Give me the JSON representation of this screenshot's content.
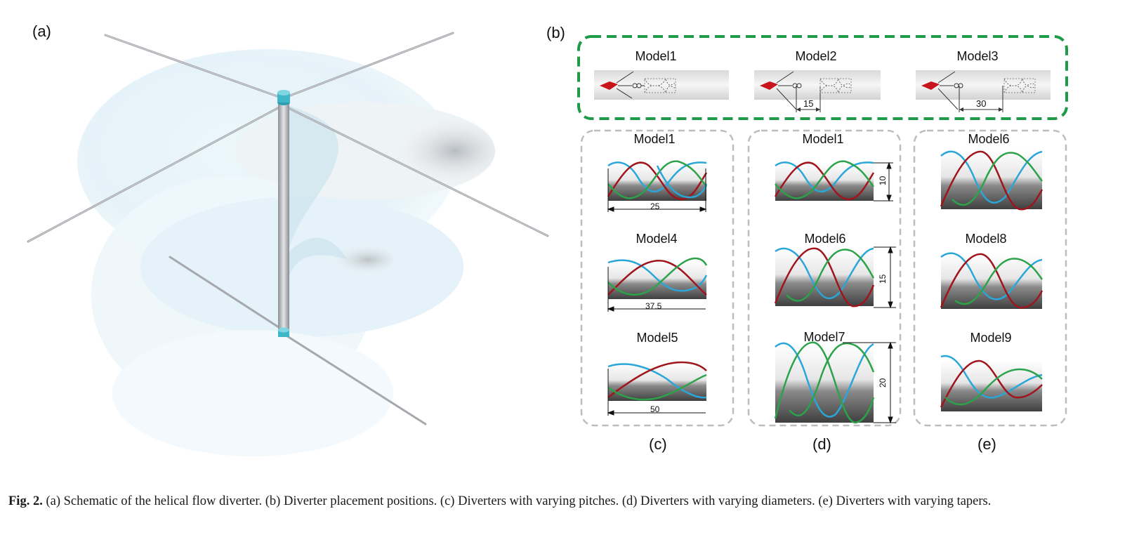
{
  "figure": {
    "panel_labels": {
      "a": "(a)",
      "b": "(b)",
      "c": "(c)",
      "d": "(d)",
      "e": "(e)"
    },
    "placement": {
      "models": [
        "Model1",
        "Model2",
        "Model3"
      ],
      "offsets": [
        "15",
        "30"
      ]
    },
    "pitch_group": {
      "models": [
        "Model1",
        "Model4",
        "Model5"
      ],
      "pitches": [
        "25",
        "37.5",
        "50"
      ]
    },
    "diameter_group": {
      "models": [
        "Model1",
        "Model6",
        "Model7"
      ],
      "diameters": [
        "10",
        "15",
        "20"
      ]
    },
    "taper_group": {
      "models": [
        "Model6",
        "Model8",
        "Model9"
      ]
    },
    "colors": {
      "green_frame": "#1f9a48",
      "gray_frame": "#bdbdbd",
      "helix_red": "#a0141c",
      "helix_green": "#2ca24a",
      "helix_blue": "#2aa6d8",
      "diverter_tip": "#c8141c",
      "hub": "#3fb7c8"
    }
  },
  "caption": {
    "label": "Fig. 2.",
    "text": " (a) Schematic of the helical flow diverter. (b) Diverter placement positions. (c) Diverters with varying pitches. (d) Diverters with varying diameters. (e) Diverters with varying tapers."
  }
}
